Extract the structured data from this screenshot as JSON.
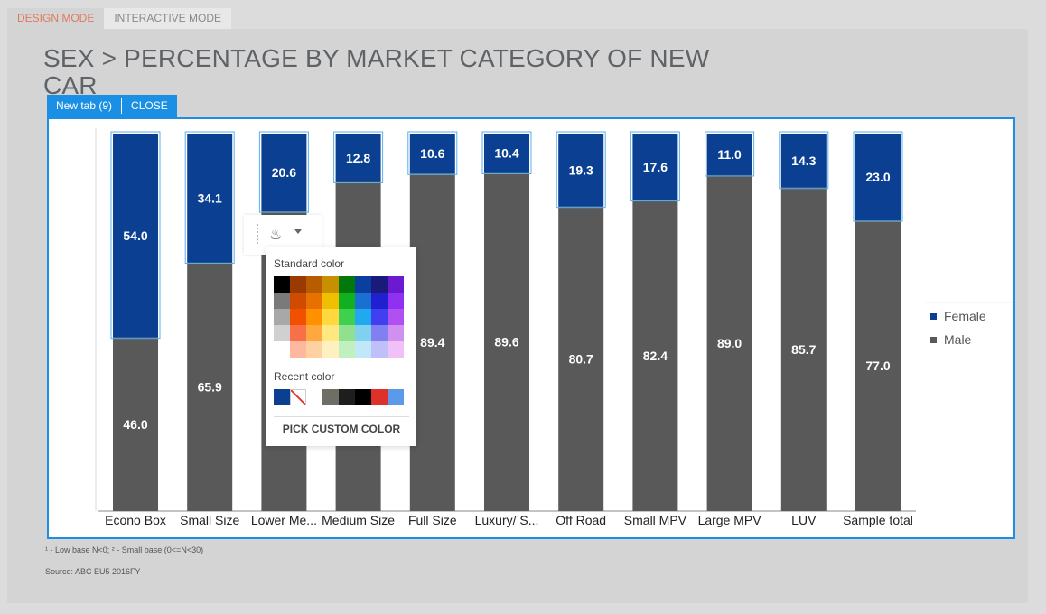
{
  "modes": {
    "design": "DESIGN MODE",
    "interactive": "INTERACTIVE MODE"
  },
  "title": "SEX > PERCENTAGE BY MARKET CATEGORY OF NEW CAR",
  "tabbar": {
    "tab_label": "New tab (9)",
    "close_label": "CLOSE"
  },
  "palette": {
    "standard_label": "Standard color",
    "recent_label": "Recent color",
    "pick_label": "PICK CUSTOM COLOR",
    "standard_colors": [
      "#000000",
      "#9a3a00",
      "#b85c00",
      "#c89000",
      "#00780a",
      "#0a3fa0",
      "#1a1a7a",
      "#6a1ad0",
      "#7a7a7a",
      "#d04a00",
      "#e87000",
      "#f0c000",
      "#10b020",
      "#1a70d0",
      "#2020d0",
      "#9030f0",
      "#a8a8a8",
      "#f05000",
      "#ff9000",
      "#ffd840",
      "#40d050",
      "#20a8f0",
      "#4040f0",
      "#b050f0",
      "#d0d0d0",
      "#f87048",
      "#ffa840",
      "#ffe880",
      "#90e090",
      "#80d0f0",
      "#8080f0",
      "#d090f0",
      "#ffffff",
      "#ffb8a0",
      "#ffd0a0",
      "#fff0c0",
      "#c0f0c0",
      "#c0e8f8",
      "#c0c0f8",
      "#f0c0f8"
    ],
    "recent_colors": [
      "#0b3f92",
      "none",
      "#ffffff",
      "#6e6e64",
      "#1e1e1e",
      "#000000",
      "#e0302a",
      "#5a9ae8"
    ]
  },
  "chart_data": {
    "type": "bar",
    "stacked": true,
    "categories": [
      "Econo Box",
      "Small Size",
      "Lower Me...",
      "Medium Size",
      "Full Size",
      "Luxury/ S...",
      "Off Road",
      "Small MPV",
      "Large MPV",
      "LUV",
      "Sample total"
    ],
    "series": [
      {
        "name": "Male",
        "color": "#595959",
        "values": [
          46.0,
          65.9,
          79.4,
          87.2,
          89.4,
          89.6,
          80.7,
          82.4,
          89.0,
          85.7,
          77.0
        ]
      },
      {
        "name": "Female",
        "color": "#0b3f92",
        "values": [
          54.0,
          34.1,
          20.6,
          12.8,
          10.6,
          10.4,
          19.3,
          17.6,
          11.0,
          14.3,
          23.0
        ]
      }
    ],
    "ylim": [
      0,
      100
    ],
    "legend_position": "right",
    "legend": [
      {
        "name": "Female",
        "color": "#0b3f92"
      },
      {
        "name": "Male",
        "color": "#595959"
      }
    ],
    "data_labels_visible": true
  },
  "footnote": "¹ - Low base N<0;   ² - Small base (0<=N<30)",
  "source": "Source: ABC EU5 2016FY"
}
